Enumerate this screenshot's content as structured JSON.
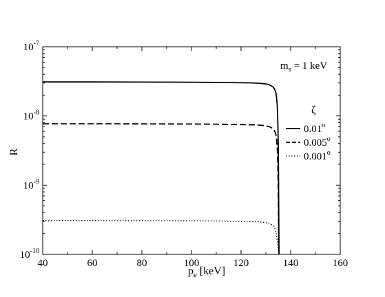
{
  "chart_data": {
    "type": "line",
    "ylabel": "R",
    "xlabel": {
      "base": "p",
      "sub": "e",
      "rest": " [keV]"
    },
    "annotation": {
      "base": "m",
      "sub": "s",
      "rest": " = 1 keV"
    },
    "legend_title": "ζ",
    "legend_position": "right",
    "xlim": [
      40,
      160
    ],
    "ylim": [
      1e-10,
      1e-07
    ],
    "y_scale": "log",
    "grid": false,
    "x_ticks": [
      40,
      60,
      80,
      100,
      120,
      140,
      160
    ],
    "y_ticks": [
      {
        "value": 1e-10,
        "base": "10",
        "exp": "-10"
      },
      {
        "value": 1e-09,
        "base": "10",
        "exp": "-9"
      },
      {
        "value": 1e-08,
        "base": "10",
        "exp": "-8"
      },
      {
        "value": 1e-07,
        "base": "10",
        "exp": "-7"
      }
    ],
    "series": [
      {
        "name": {
          "base": "0.01",
          "sup": "o"
        },
        "style": "solid",
        "x": [
          40,
          60,
          80,
          100,
          110,
          120,
          125,
          128,
          130,
          131,
          132,
          133,
          133.5,
          134,
          134.3,
          134.6,
          134.8,
          135.0,
          135.1,
          135.2,
          135.3
        ],
        "y": [
          3.1e-08,
          3.1e-08,
          3.09e-08,
          3.07e-08,
          3.05e-08,
          3.02e-08,
          3e-08,
          2.95e-08,
          2.9e-08,
          2.85e-08,
          2.75e-08,
          2.6e-08,
          2.45e-08,
          2.2e-08,
          1.9e-08,
          1.4e-08,
          9e-09,
          4e-09,
          1.5e-09,
          4e-10,
          1e-10
        ]
      },
      {
        "name": {
          "base": "0.005",
          "sup": "o"
        },
        "style": "dashed",
        "x": [
          40,
          60,
          80,
          100,
          110,
          120,
          125,
          128,
          130,
          131,
          132,
          133,
          133.5,
          134,
          134.3,
          134.6,
          134.8,
          135.0,
          135.1,
          135.2,
          135.3
        ],
        "y": [
          7.7e-09,
          7.7e-09,
          7.68e-09,
          7.65e-09,
          7.6e-09,
          7.5e-09,
          7.45e-09,
          7.35e-09,
          7.2e-09,
          7.05e-09,
          6.85e-09,
          6.5e-09,
          6.1e-09,
          5.5e-09,
          4.7e-09,
          3.5e-09,
          2.2e-09,
          1e-09,
          3.8e-10,
          1.5e-10,
          1e-10
        ]
      },
      {
        "name": {
          "base": "0.001",
          "sup": "o"
        },
        "style": "dotted",
        "x": [
          40,
          60,
          80,
          100,
          110,
          120,
          125,
          128,
          130,
          131,
          132,
          133,
          133.5,
          134,
          134.3,
          134.6,
          134.8,
          135.0,
          135.1,
          135.2,
          135.3
        ],
        "y": [
          3.08e-10,
          3.08e-10,
          3.07e-10,
          3.06e-10,
          3.04e-10,
          3e-10,
          2.98e-10,
          2.94e-10,
          2.88e-10,
          2.82e-10,
          2.74e-10,
          2.6e-10,
          2.45e-10,
          2.2e-10,
          1.88e-10,
          1.55e-10,
          1.35e-10,
          1.18e-10,
          1.1e-10,
          1.04e-10,
          1e-10
        ]
      }
    ]
  }
}
